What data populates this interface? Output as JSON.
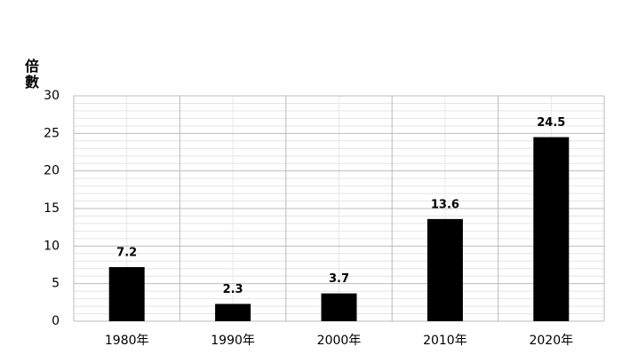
{
  "chart_data": {
    "type": "bar",
    "y_label": "倍數",
    "categories": [
      "1980年",
      "1990年",
      "2000年",
      "2010年",
      "2020年"
    ],
    "values": [
      7.2,
      2.3,
      3.7,
      13.6,
      24.5
    ],
    "color": "#000000",
    "ylim": [
      0,
      30
    ],
    "yticks": [
      0,
      5,
      10,
      15,
      20,
      25,
      30
    ],
    "grid": true,
    "minor_grid": true
  }
}
